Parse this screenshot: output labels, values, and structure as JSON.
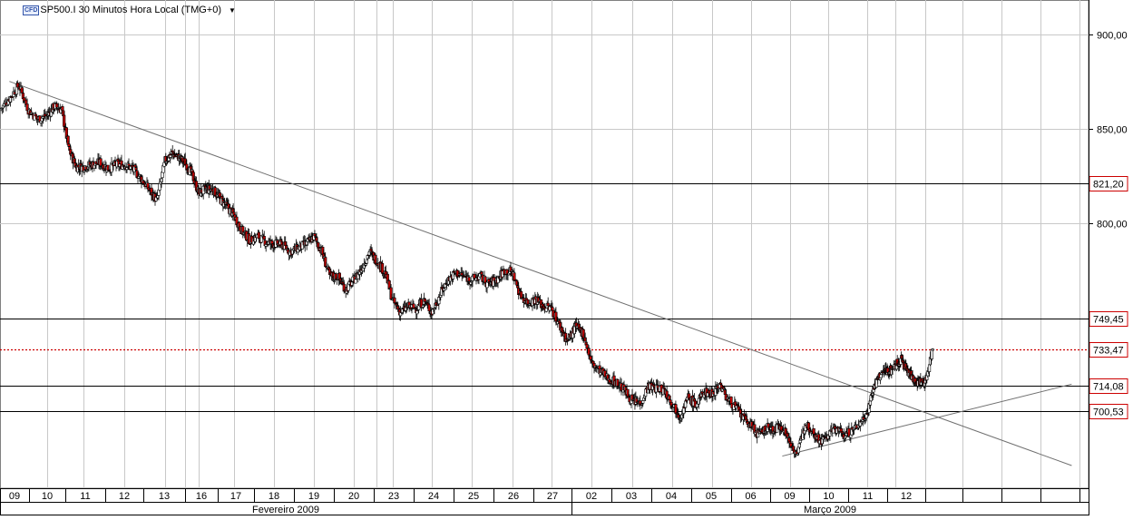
{
  "header": {
    "cfd_badge": "CFD",
    "title": "SP500.I 30 Minutos Hora Local (TMG+0)",
    "dropdown_icon": "chevron-down-icon"
  },
  "colors": {
    "candle_up": "#ffffff",
    "candle_down": "#c00000",
    "grid": "#c8c8c8",
    "level_line": "#000000",
    "current_price_line": "#cc0000",
    "label_border": "#cc0000"
  },
  "chart_data": {
    "type": "candlestick",
    "title": "SP500.I 30 Minutos Hora Local (TMG+0)",
    "y_axis": {
      "side": "right",
      "ticks": [
        900,
        850,
        800
      ],
      "tick_labels": [
        "900,00",
        "850,00",
        "800,00"
      ],
      "ylim": [
        660,
        918
      ]
    },
    "x_axis": {
      "day_labels": [
        "09",
        "10",
        "11",
        "12",
        "13",
        "16",
        "17",
        "18",
        "19",
        "20",
        "23",
        "24",
        "25",
        "26",
        "27",
        "02",
        "03",
        "04",
        "05",
        "06",
        "09",
        "10",
        "11",
        "12"
      ],
      "month_labels": [
        "Fevereiro 2009",
        "Março 2009"
      ]
    },
    "close_path": [
      [
        0,
        860
      ],
      [
        0.2,
        866
      ],
      [
        0.4,
        873
      ],
      [
        0.6,
        860
      ],
      [
        0.8,
        855
      ],
      [
        1.0,
        857
      ],
      [
        1.2,
        862
      ],
      [
        1.4,
        860
      ],
      [
        1.6,
        839
      ],
      [
        1.8,
        830
      ],
      [
        2.0,
        830
      ],
      [
        2.2,
        831
      ],
      [
        2.4,
        832
      ],
      [
        2.6,
        829
      ],
      [
        2.8,
        831
      ],
      [
        3.0,
        831
      ],
      [
        3.2,
        829
      ],
      [
        3.4,
        824
      ],
      [
        3.6,
        818
      ],
      [
        3.8,
        812
      ],
      [
        4.0,
        833
      ],
      [
        4.2,
        837
      ],
      [
        4.4,
        835
      ],
      [
        4.6,
        832
      ],
      [
        4.8,
        826
      ],
      [
        5.0,
        816
      ],
      [
        5.2,
        818
      ],
      [
        5.4,
        818
      ],
      [
        5.6,
        813
      ],
      [
        5.8,
        809
      ],
      [
        6.0,
        804
      ],
      [
        6.2,
        796
      ],
      [
        6.4,
        791
      ],
      [
        6.6,
        793
      ],
      [
        6.8,
        790
      ],
      [
        7.0,
        789
      ],
      [
        7.2,
        789
      ],
      [
        7.4,
        785
      ],
      [
        7.6,
        787
      ],
      [
        7.8,
        789
      ],
      [
        8.0,
        793
      ],
      [
        8.2,
        785
      ],
      [
        8.4,
        772
      ],
      [
        8.6,
        772
      ],
      [
        8.8,
        765
      ],
      [
        9.0,
        770
      ],
      [
        9.2,
        776
      ],
      [
        9.4,
        785
      ],
      [
        9.6,
        780
      ],
      [
        9.8,
        774
      ],
      [
        10.0,
        759
      ],
      [
        10.2,
        753
      ],
      [
        10.4,
        756
      ],
      [
        10.6,
        755
      ],
      [
        10.8,
        759
      ],
      [
        11.0,
        753
      ],
      [
        11.2,
        762
      ],
      [
        11.4,
        770
      ],
      [
        11.6,
        774
      ],
      [
        11.8,
        772
      ],
      [
        12.0,
        770
      ],
      [
        12.2,
        772
      ],
      [
        12.4,
        768
      ],
      [
        12.6,
        770
      ],
      [
        12.8,
        775
      ],
      [
        13.0,
        774
      ],
      [
        13.2,
        762
      ],
      [
        13.4,
        758
      ],
      [
        13.6,
        760
      ],
      [
        13.8,
        756
      ],
      [
        14.0,
        755
      ],
      [
        14.2,
        746
      ],
      [
        14.4,
        738
      ],
      [
        14.6,
        745
      ],
      [
        14.8,
        742
      ],
      [
        15.0,
        726
      ],
      [
        15.2,
        722
      ],
      [
        15.4,
        718
      ],
      [
        15.6,
        716
      ],
      [
        15.8,
        712
      ],
      [
        16.0,
        706
      ],
      [
        16.2,
        705
      ],
      [
        16.4,
        714
      ],
      [
        16.6,
        713
      ],
      [
        16.8,
        712
      ],
      [
        17.0,
        705
      ],
      [
        17.2,
        698
      ],
      [
        17.4,
        708
      ],
      [
        17.6,
        704
      ],
      [
        17.8,
        711
      ],
      [
        18.0,
        710
      ],
      [
        18.2,
        715
      ],
      [
        18.4,
        707
      ],
      [
        18.6,
        703
      ],
      [
        18.8,
        697
      ],
      [
        19.0,
        693
      ],
      [
        19.2,
        688
      ],
      [
        19.4,
        692
      ],
      [
        19.6,
        691
      ],
      [
        19.8,
        693
      ],
      [
        20.0,
        684
      ],
      [
        20.2,
        678
      ],
      [
        20.4,
        695
      ],
      [
        20.6,
        690
      ],
      [
        20.8,
        685
      ],
      [
        21.0,
        688
      ],
      [
        21.2,
        692
      ],
      [
        21.4,
        688
      ],
      [
        21.6,
        690
      ],
      [
        21.8,
        694
      ],
      [
        22.0,
        700
      ],
      [
        22.2,
        712
      ],
      [
        22.4,
        718
      ],
      [
        22.6,
        722
      ],
      [
        22.8,
        722
      ],
      [
        23.0,
        725
      ],
      [
        23.2,
        728
      ],
      [
        23.4,
        722
      ],
      [
        23.6,
        718
      ],
      [
        23.8,
        716
      ],
      [
        24.0,
        716
      ],
      [
        24.2,
        734
      ]
    ],
    "horizontal_levels": [
      821.2,
      749.45,
      714.08,
      700.53
    ],
    "horizontal_level_labels": [
      "821,20",
      "749,45",
      "714,08",
      "700,53"
    ],
    "current_price": 733.47,
    "current_price_label": "733,47",
    "trendlines": [
      {
        "from": [
          0.2,
          875
        ],
        "to": [
          27.8,
          672
        ]
      },
      {
        "from": [
          19.8,
          677
        ],
        "to": [
          27.8,
          715
        ]
      }
    ],
    "grid": true
  }
}
